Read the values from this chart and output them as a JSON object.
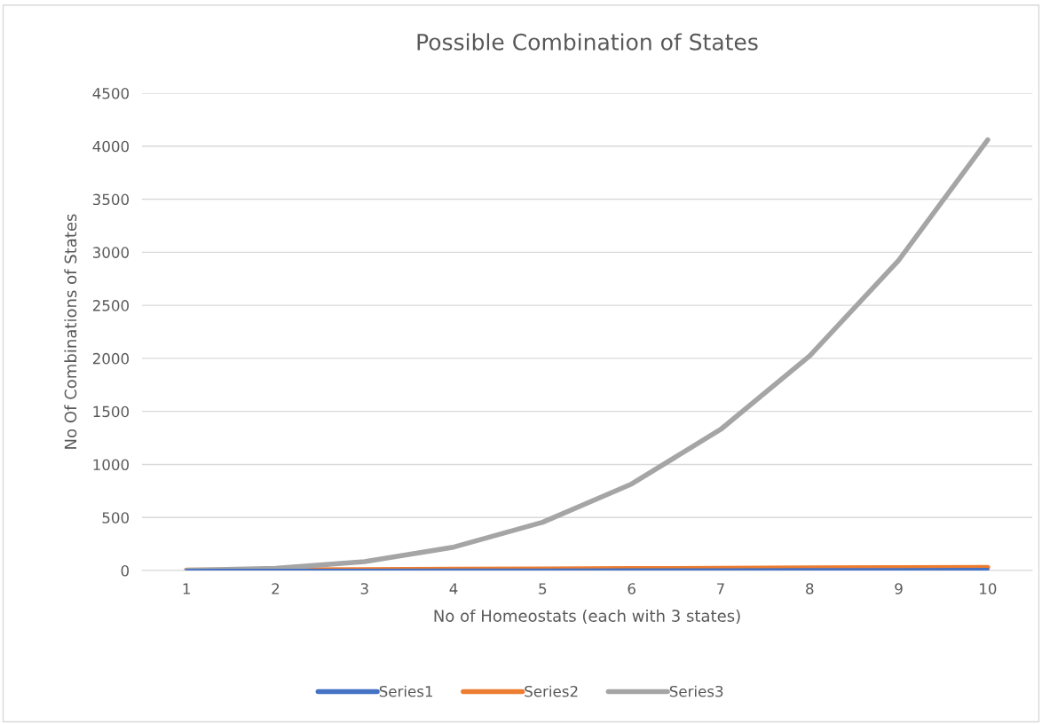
{
  "chart_data": {
    "type": "line",
    "title": "Possible Combination of States",
    "xlabel": "No of Homeostats (each with 3 states)",
    "ylabel": "No Of Combinations of States",
    "categories": [
      "1",
      "2",
      "3",
      "4",
      "5",
      "6",
      "7",
      "8",
      "9",
      "10"
    ],
    "series": [
      {
        "name": "Series1",
        "color": "#4472c4",
        "values": [
          1,
          2,
          3,
          4,
          5,
          6,
          7,
          8,
          9,
          10
        ]
      },
      {
        "name": "Series2",
        "color": "#ed7d31",
        "values": [
          3,
          6,
          9,
          12,
          15,
          18,
          21,
          24,
          27,
          30
        ]
      },
      {
        "name": "Series3",
        "color": "#a5a5a5",
        "values": [
          1,
          20,
          84,
          220,
          455,
          816,
          1330,
          2024,
          2925,
          4060
        ]
      }
    ],
    "ylim": [
      0,
      4500
    ],
    "yticks": [
      0,
      500,
      1000,
      1500,
      2000,
      2500,
      3000,
      3500,
      4000,
      4500
    ],
    "grid": "y",
    "legend": "bottom",
    "marker": "none",
    "line_style": "solid"
  }
}
